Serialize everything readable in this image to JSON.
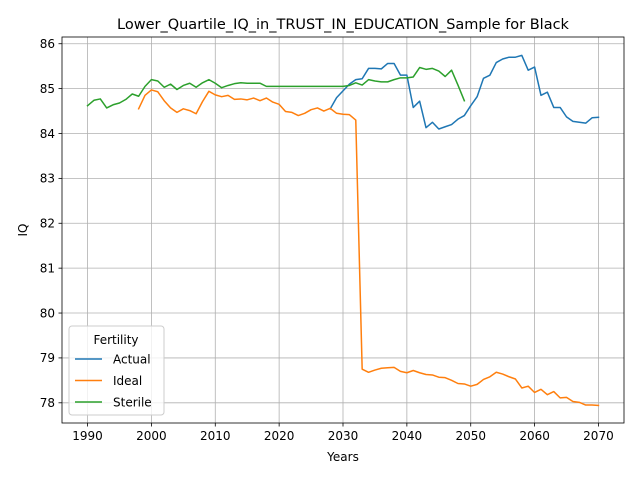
{
  "chart_data": {
    "type": "line",
    "title": "Lower_Quartile_IQ_in_TRUST_IN_EDUCATION_Sample for Black",
    "xlabel": "Years",
    "ylabel": "IQ",
    "xlim": [
      1986,
      2074
    ],
    "ylim": [
      77.55,
      86.15
    ],
    "xticks": [
      1990,
      2000,
      2010,
      2020,
      2030,
      2040,
      2050,
      2060,
      2070
    ],
    "yticks": [
      78,
      79,
      80,
      81,
      82,
      83,
      84,
      85,
      86
    ],
    "grid": true,
    "legend": {
      "title": "Fertility",
      "position": "lower-left"
    },
    "series": [
      {
        "name": "Actual",
        "color": "#1f77b4",
        "x": [
          2028,
          2029,
          2030,
          2031,
          2032,
          2033,
          2034,
          2035,
          2036,
          2037,
          2038,
          2039,
          2040,
          2041,
          2042,
          2043,
          2044,
          2045,
          2046,
          2047,
          2048,
          2049,
          2050,
          2051,
          2052,
          2053,
          2054,
          2055,
          2056,
          2057,
          2058,
          2059,
          2060,
          2061,
          2062,
          2063,
          2064,
          2065,
          2066,
          2067,
          2068,
          2069,
          2070
        ],
        "y": [
          84.55,
          84.8,
          84.95,
          85.1,
          85.2,
          85.22,
          85.45,
          85.45,
          85.44,
          85.56,
          85.56,
          85.3,
          85.3,
          84.58,
          84.72,
          84.13,
          84.25,
          84.1,
          84.15,
          84.2,
          84.32,
          84.4,
          84.62,
          84.82,
          85.23,
          85.3,
          85.58,
          85.66,
          85.7,
          85.7,
          85.74,
          85.41,
          85.48,
          84.85,
          84.92,
          84.58,
          84.58,
          84.37,
          84.27,
          84.25,
          84.23,
          84.35,
          84.36
        ]
      },
      {
        "name": "Ideal",
        "color": "#ff7f0e",
        "x": [
          1998,
          1999,
          2000,
          2001,
          2002,
          2003,
          2004,
          2005,
          2006,
          2007,
          2008,
          2009,
          2010,
          2011,
          2012,
          2013,
          2014,
          2015,
          2016,
          2017,
          2018,
          2019,
          2020,
          2021,
          2022,
          2023,
          2024,
          2025,
          2026,
          2027,
          2028,
          2029,
          2030,
          2031,
          2032,
          2033,
          2034,
          2035,
          2036,
          2037,
          2038,
          2039,
          2040,
          2041,
          2042,
          2043,
          2044,
          2045,
          2046,
          2047,
          2048,
          2049,
          2050,
          2051,
          2052,
          2053,
          2054,
          2055,
          2056,
          2057,
          2058,
          2059,
          2060,
          2061,
          2062,
          2063,
          2064,
          2065,
          2066,
          2067,
          2068,
          2069,
          2070
        ],
        "y": [
          84.55,
          84.85,
          84.97,
          84.93,
          84.73,
          84.57,
          84.47,
          84.55,
          84.51,
          84.44,
          84.71,
          84.94,
          84.86,
          84.82,
          84.85,
          84.76,
          84.77,
          84.75,
          84.79,
          84.73,
          84.79,
          84.7,
          84.65,
          84.49,
          84.47,
          84.4,
          84.45,
          84.53,
          84.57,
          84.5,
          84.56,
          84.45,
          84.43,
          84.42,
          84.3,
          78.75,
          78.68,
          78.73,
          78.77,
          78.78,
          78.79,
          78.7,
          78.67,
          78.72,
          78.67,
          78.63,
          78.62,
          78.57,
          78.56,
          78.5,
          78.43,
          78.42,
          78.37,
          78.41,
          78.52,
          78.58,
          78.68,
          78.64,
          78.58,
          78.53,
          78.33,
          78.37,
          78.23,
          78.3,
          78.18,
          78.25,
          78.11,
          78.12,
          78.03,
          78.01,
          77.95,
          77.95,
          77.94
        ]
      },
      {
        "name": "Sterile",
        "color": "#2ca02c",
        "x": [
          1990,
          1991,
          1992,
          1993,
          1994,
          1995,
          1996,
          1997,
          1998,
          1999,
          2000,
          2001,
          2002,
          2003,
          2004,
          2005,
          2006,
          2007,
          2008,
          2009,
          2010,
          2011,
          2012,
          2013,
          2014,
          2015,
          2016,
          2017,
          2018,
          2019,
          2020,
          2021,
          2022,
          2023,
          2024,
          2025,
          2026,
          2027,
          2028,
          2029,
          2030,
          2031,
          2032,
          2033,
          2034,
          2035,
          2036,
          2037,
          2038,
          2039,
          2040,
          2041,
          2042,
          2043,
          2044,
          2045,
          2046,
          2047,
          2048,
          2049
        ],
        "y": [
          84.62,
          84.74,
          84.77,
          84.57,
          84.64,
          84.68,
          84.76,
          84.88,
          84.83,
          85.05,
          85.2,
          85.17,
          85.03,
          85.1,
          84.98,
          85.07,
          85.12,
          85.03,
          85.13,
          85.2,
          85.12,
          85.02,
          85.07,
          85.11,
          85.13,
          85.12,
          85.12,
          85.12,
          85.05,
          85.05,
          85.05,
          85.05,
          85.05,
          85.05,
          85.05,
          85.05,
          85.05,
          85.05,
          85.05,
          85.05,
          85.05,
          85.07,
          85.13,
          85.08,
          85.2,
          85.17,
          85.15,
          85.15,
          85.2,
          85.24,
          85.24,
          85.26,
          85.47,
          85.43,
          85.45,
          85.39,
          85.27,
          85.41,
          85.08,
          84.73
        ]
      }
    ]
  }
}
